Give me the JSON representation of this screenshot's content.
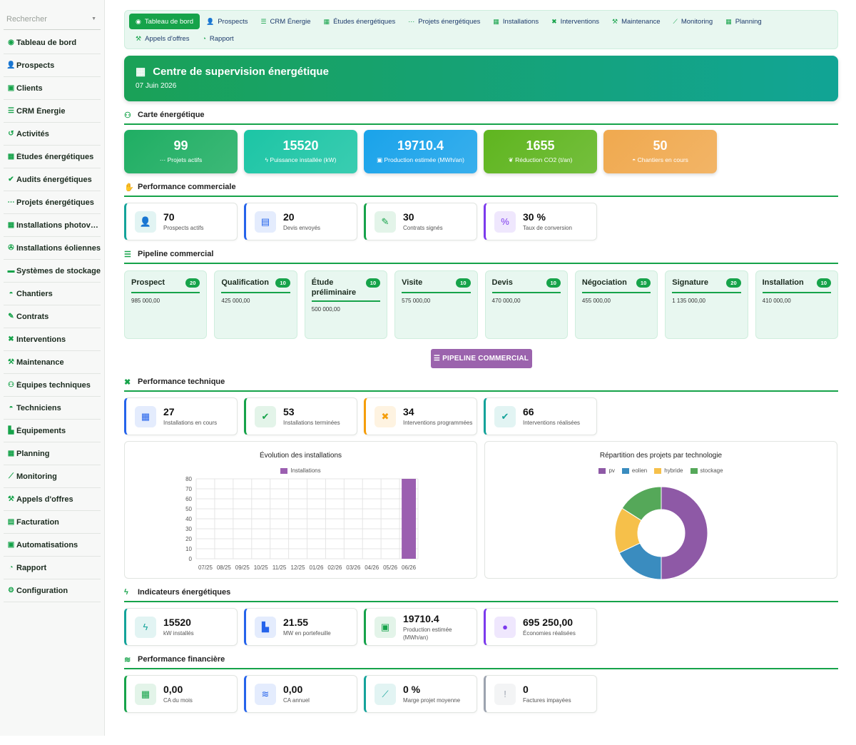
{
  "sidebar": {
    "search_placeholder": "Rechercher",
    "items": [
      {
        "label": "Tableau de bord",
        "icon": "dashboard-icon",
        "glyph": "◉"
      },
      {
        "label": "Prospects",
        "icon": "user-plus-icon",
        "glyph": "👤"
      },
      {
        "label": "Clients",
        "icon": "address-book-icon",
        "glyph": "▣"
      },
      {
        "label": "CRM Énergie",
        "icon": "list-icon",
        "glyph": "☰"
      },
      {
        "label": "Activités",
        "icon": "history-icon",
        "glyph": "↺"
      },
      {
        "label": "Études énergétiques",
        "icon": "solar-panel-icon",
        "glyph": "▦"
      },
      {
        "label": "Audits énergétiques",
        "icon": "clipboard-check-icon",
        "glyph": "✔"
      },
      {
        "label": "Projets énergétiques",
        "icon": "project-diagram-icon",
        "glyph": "⋯"
      },
      {
        "label": "Installations photovoltaïques",
        "icon": "solar-panel-icon",
        "glyph": "▦"
      },
      {
        "label": "Installations éoliennes",
        "icon": "fan-icon",
        "glyph": "✇"
      },
      {
        "label": "Systèmes de stockage",
        "icon": "car-battery-icon",
        "glyph": "▬"
      },
      {
        "label": "Chantiers",
        "icon": "hard-hat-icon",
        "glyph": "◓"
      },
      {
        "label": "Contrats",
        "icon": "file-signature-icon",
        "glyph": "✎"
      },
      {
        "label": "Interventions",
        "icon": "tools-icon",
        "glyph": "✖"
      },
      {
        "label": "Maintenance",
        "icon": "wrench-icon",
        "glyph": "⚒"
      },
      {
        "label": "Équipes techniques",
        "icon": "users-icon",
        "glyph": "⚇"
      },
      {
        "label": "Techniciens",
        "icon": "hard-hat-icon",
        "glyph": "◓"
      },
      {
        "label": "Équipements",
        "icon": "industry-icon",
        "glyph": "▙"
      },
      {
        "label": "Planning",
        "icon": "calendar-icon",
        "glyph": "▦"
      },
      {
        "label": "Monitoring",
        "icon": "chart-line-icon",
        "glyph": "⟋"
      },
      {
        "label": "Appels d'offres",
        "icon": "gavel-icon",
        "glyph": "⚒"
      },
      {
        "label": "Facturation",
        "icon": "invoice-icon",
        "glyph": "▤"
      },
      {
        "label": "Automatisations",
        "icon": "robot-icon",
        "glyph": "▣"
      },
      {
        "label": "Rapport",
        "icon": "chart-pie-icon",
        "glyph": "◔"
      },
      {
        "label": "Configuration",
        "icon": "cog-icon",
        "glyph": "⚙"
      }
    ]
  },
  "topnav": [
    {
      "label": "Tableau de bord",
      "icon": "dashboard-icon",
      "glyph": "◉",
      "active": true
    },
    {
      "label": "Prospects",
      "icon": "user-plus-icon",
      "glyph": "👤"
    },
    {
      "label": "CRM Énergie",
      "icon": "list-icon",
      "glyph": "☰"
    },
    {
      "label": "Études énergétiques",
      "icon": "solar-panel-icon",
      "glyph": "▦"
    },
    {
      "label": "Projets énergétiques",
      "icon": "project-diagram-icon",
      "glyph": "⋯"
    },
    {
      "label": "Installations",
      "icon": "solar-panel-icon",
      "glyph": "▦"
    },
    {
      "label": "Interventions",
      "icon": "tools-icon",
      "glyph": "✖"
    },
    {
      "label": "Maintenance",
      "icon": "wrench-icon",
      "glyph": "⚒"
    },
    {
      "label": "Monitoring",
      "icon": "chart-line-icon",
      "glyph": "⟋"
    },
    {
      "label": "Planning",
      "icon": "calendar-icon",
      "glyph": "▦"
    },
    {
      "label": "Appels d'offres",
      "icon": "gavel-icon",
      "glyph": "⚒"
    },
    {
      "label": "Rapport",
      "icon": "chart-pie-icon",
      "glyph": "◔"
    }
  ],
  "hero": {
    "title": "Centre de supervision énergétique",
    "date": "07 Juin 2026",
    "icon": "solar-panel-icon"
  },
  "sections": {
    "carte": "Carte énergétique",
    "commercial": "Performance commerciale",
    "pipeline": "Pipeline commercial",
    "technique": "Performance technique",
    "indicateurs": "Indicateurs énergétiques",
    "financiere": "Performance financière"
  },
  "carte_kpis": [
    {
      "value": "99",
      "label": "Projets actifs",
      "glyph": "⋯",
      "icon": "project-diagram-icon",
      "color": "#1fae63"
    },
    {
      "value": "15520",
      "label": "Puissance installée (kW)",
      "glyph": "ϟ",
      "icon": "bolt-icon",
      "color": "#1cc5a5"
    },
    {
      "value": "19710.4",
      "label": "Production estimée (MWh/an)",
      "glyph": "▣",
      "icon": "charging-station-icon",
      "color": "#1aa3ea"
    },
    {
      "value": "1655",
      "label": "Réduction CO2 (t/an)",
      "glyph": "❦",
      "icon": "leaf-icon",
      "color": "#5fb51f"
    },
    {
      "value": "50",
      "label": "Chantiers en cours",
      "glyph": "◓",
      "icon": "hard-hat-icon",
      "color": "#f0a94f"
    }
  ],
  "commercial_stats": [
    {
      "value": "70",
      "label": "Prospects actifs",
      "glyph": "👤",
      "icon": "user-plus-icon",
      "color": "#14a39a"
    },
    {
      "value": "20",
      "label": "Devis envoyés",
      "glyph": "▤",
      "icon": "file-invoice-icon",
      "color": "#2563eb"
    },
    {
      "value": "30",
      "label": "Contrats signés",
      "glyph": "✎",
      "icon": "file-signature-icon",
      "color": "#16a34a"
    },
    {
      "value": "30 %",
      "label": "Taux de conversion",
      "glyph": "%",
      "icon": "percent-icon",
      "color": "#7c3aed"
    }
  ],
  "pipeline": [
    {
      "stage": "Prospect",
      "count": "20",
      "amount": "985 000,00"
    },
    {
      "stage": "Qualification",
      "count": "10",
      "amount": "425 000,00"
    },
    {
      "stage": "Étude préliminaire",
      "count": "10",
      "amount": "500 000,00"
    },
    {
      "stage": "Visite",
      "count": "10",
      "amount": "575 000,00"
    },
    {
      "stage": "Devis",
      "count": "10",
      "amount": "470 000,00"
    },
    {
      "stage": "Négociation",
      "count": "10",
      "amount": "455 000,00"
    },
    {
      "stage": "Signature",
      "count": "20",
      "amount": "1 135 000,00"
    },
    {
      "stage": "Installation",
      "count": "10",
      "amount": "410 000,00"
    }
  ],
  "pipeline_button": "PIPELINE COMMERCIAL",
  "technique_stats": [
    {
      "value": "27",
      "label": "Installations en cours",
      "glyph": "▦",
      "icon": "solar-panel-icon",
      "color": "#2563eb"
    },
    {
      "value": "53",
      "label": "Installations terminées",
      "glyph": "✔",
      "icon": "check-circle-icon",
      "color": "#16a34a"
    },
    {
      "value": "34",
      "label": "Interventions programmées",
      "glyph": "✖",
      "icon": "tools-icon",
      "color": "#f59e0b"
    },
    {
      "value": "66",
      "label": "Interventions réalisées",
      "glyph": "✔",
      "icon": "clipboard-check-icon",
      "color": "#14a39a"
    }
  ],
  "chart_data": [
    {
      "type": "bar",
      "title": "Évolution des installations",
      "categories": [
        "07/25",
        "08/25",
        "09/25",
        "10/25",
        "11/25",
        "12/25",
        "01/26",
        "02/26",
        "03/26",
        "04/26",
        "05/26",
        "06/26"
      ],
      "series": [
        {
          "name": "Installations",
          "color": "#9b5fb0",
          "values": [
            0,
            0,
            0,
            0,
            0,
            0,
            0,
            0,
            0,
            0,
            0,
            80
          ]
        }
      ],
      "ylim": [
        0,
        80
      ],
      "yticks": [
        "0",
        "10",
        "20",
        "30",
        "40",
        "50",
        "60",
        "70",
        "80"
      ],
      "legend": "top",
      "grid": true
    },
    {
      "type": "pie",
      "title": "Répartition des projets par technologie",
      "labels": [
        "pv",
        "eolien",
        "hybride",
        "stockage"
      ],
      "colors": [
        "#8e59a6",
        "#3a8cbf",
        "#f6c04a",
        "#55a859"
      ],
      "values": [
        50,
        18,
        16,
        16
      ],
      "legend": "top"
    }
  ],
  "indicateurs_stats": [
    {
      "value": "15520",
      "label": "kW installés",
      "glyph": "ϟ",
      "icon": "bolt-icon",
      "color": "#14a39a"
    },
    {
      "value": "21.55",
      "label": "MW en portefeuille",
      "glyph": "▙",
      "icon": "industry-icon",
      "color": "#2563eb"
    },
    {
      "value": "19710.4",
      "label": "Production estimée (MWh/an)",
      "glyph": "▣",
      "icon": "charging-station-icon",
      "color": "#16a34a"
    },
    {
      "value": "695 250,00",
      "label": "Économies réalisées",
      "glyph": "●",
      "icon": "piggy-bank-icon",
      "color": "#7c3aed"
    }
  ],
  "financiere_stats": [
    {
      "value": "0,00",
      "label": "CA du mois",
      "glyph": "▦",
      "icon": "calendar-icon",
      "color": "#16a34a"
    },
    {
      "value": "0,00",
      "label": "CA annuel",
      "glyph": "≋",
      "icon": "coins-icon",
      "color": "#2563eb"
    },
    {
      "value": "0 %",
      "label": "Marge projet moyenne",
      "glyph": "⟋",
      "icon": "chart-line-icon",
      "color": "#14a39a"
    },
    {
      "value": "0",
      "label": "Factures impayées",
      "glyph": "!",
      "icon": "exclamation-circle-icon",
      "color": "#9ca3af"
    }
  ],
  "section_icons": {
    "carte": {
      "icon": "map-icon",
      "glyph": "⚇"
    },
    "commercial": {
      "icon": "handshake-icon",
      "glyph": "✋"
    },
    "pipeline": {
      "icon": "list-icon",
      "glyph": "☰"
    },
    "technique": {
      "icon": "tools-icon",
      "glyph": "✖"
    },
    "indicateurs": {
      "icon": "bolt-icon",
      "glyph": "ϟ"
    },
    "financiere": {
      "icon": "coins-icon",
      "glyph": "≋"
    }
  }
}
